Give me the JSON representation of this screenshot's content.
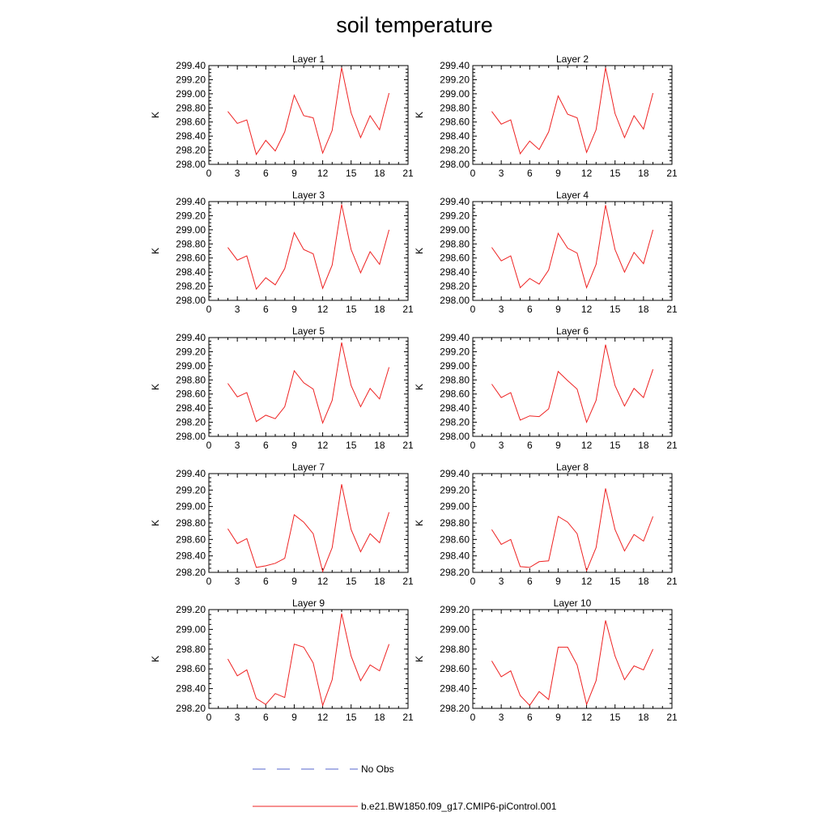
{
  "figure": {
    "title": "soil temperature"
  },
  "legend": {
    "entries": [
      {
        "label": "No Obs",
        "color": "#5566cc",
        "style": "dashed"
      },
      {
        "label": "b.e21.BW1850.f09_g17.CMIP6-piControl.001",
        "color": "#ee2222",
        "style": "solid"
      }
    ]
  },
  "chart_data": [
    {
      "type": "line",
      "title": "Layer 1",
      "ylabel": "K",
      "xlim": [
        0,
        21
      ],
      "xticks": [
        0,
        3,
        6,
        9,
        12,
        15,
        18,
        21
      ],
      "ylim": [
        298.0,
        299.4
      ],
      "yticks": [
        298.0,
        298.2,
        298.4,
        298.6,
        298.8,
        299.0,
        299.2,
        299.4
      ],
      "x": [
        2,
        3,
        4,
        5,
        6,
        7,
        8,
        9,
        10,
        11,
        12,
        13,
        14,
        15,
        16,
        17,
        18,
        19
      ],
      "series": [
        {
          "name": "b.e21.BW1850.f09_g17.CMIP6-piControl.001",
          "values": [
            298.75,
            298.58,
            298.63,
            298.14,
            298.34,
            298.19,
            298.46,
            298.98,
            298.69,
            298.66,
            298.16,
            298.48,
            299.37,
            298.73,
            298.38,
            298.69,
            298.49,
            299.01
          ]
        }
      ]
    },
    {
      "type": "line",
      "title": "Layer 2",
      "ylabel": "K",
      "xlim": [
        0,
        21
      ],
      "xticks": [
        0,
        3,
        6,
        9,
        12,
        15,
        18,
        21
      ],
      "ylim": [
        298.0,
        299.4
      ],
      "yticks": [
        298.0,
        298.2,
        298.4,
        298.6,
        298.8,
        299.0,
        299.2,
        299.4
      ],
      "x": [
        2,
        3,
        4,
        5,
        6,
        7,
        8,
        9,
        10,
        11,
        12,
        13,
        14,
        15,
        16,
        17,
        18,
        19
      ],
      "series": [
        {
          "name": "b.e21.BW1850.f09_g17.CMIP6-piControl.001",
          "values": [
            298.75,
            298.57,
            298.63,
            298.15,
            298.33,
            298.21,
            298.46,
            298.97,
            298.71,
            298.66,
            298.17,
            298.49,
            299.37,
            298.72,
            298.38,
            298.69,
            298.5,
            299.01
          ]
        }
      ]
    },
    {
      "type": "line",
      "title": "Layer 3",
      "ylabel": "K",
      "xlim": [
        0,
        21
      ],
      "xticks": [
        0,
        3,
        6,
        9,
        12,
        15,
        18,
        21
      ],
      "ylim": [
        298.0,
        299.4
      ],
      "yticks": [
        298.0,
        298.2,
        298.4,
        298.6,
        298.8,
        299.0,
        299.2,
        299.4
      ],
      "x": [
        2,
        3,
        4,
        5,
        6,
        7,
        8,
        9,
        10,
        11,
        12,
        13,
        14,
        15,
        16,
        17,
        18,
        19
      ],
      "series": [
        {
          "name": "b.e21.BW1850.f09_g17.CMIP6-piControl.001",
          "values": [
            298.75,
            298.57,
            298.63,
            298.16,
            298.32,
            298.22,
            298.45,
            298.96,
            298.72,
            298.66,
            298.17,
            298.5,
            299.36,
            298.72,
            298.39,
            298.69,
            298.51,
            299.0
          ]
        }
      ]
    },
    {
      "type": "line",
      "title": "Layer 4",
      "ylabel": "K",
      "xlim": [
        0,
        21
      ],
      "xticks": [
        0,
        3,
        6,
        9,
        12,
        15,
        18,
        21
      ],
      "ylim": [
        298.0,
        299.4
      ],
      "yticks": [
        298.0,
        298.2,
        298.4,
        298.6,
        298.8,
        299.0,
        299.2,
        299.4
      ],
      "x": [
        2,
        3,
        4,
        5,
        6,
        7,
        8,
        9,
        10,
        11,
        12,
        13,
        14,
        15,
        16,
        17,
        18,
        19
      ],
      "series": [
        {
          "name": "b.e21.BW1850.f09_g17.CMIP6-piControl.001",
          "values": [
            298.75,
            298.56,
            298.63,
            298.18,
            298.31,
            298.23,
            298.43,
            298.95,
            298.74,
            298.67,
            298.18,
            298.51,
            299.35,
            298.72,
            298.4,
            298.68,
            298.52,
            299.0
          ]
        }
      ]
    },
    {
      "type": "line",
      "title": "Layer 5",
      "ylabel": "K",
      "xlim": [
        0,
        21
      ],
      "xticks": [
        0,
        3,
        6,
        9,
        12,
        15,
        18,
        21
      ],
      "ylim": [
        298.0,
        299.4
      ],
      "yticks": [
        298.0,
        298.2,
        298.4,
        298.6,
        298.8,
        299.0,
        299.2,
        299.4
      ],
      "x": [
        2,
        3,
        4,
        5,
        6,
        7,
        8,
        9,
        10,
        11,
        12,
        13,
        14,
        15,
        16,
        17,
        18,
        19
      ],
      "series": [
        {
          "name": "b.e21.BW1850.f09_g17.CMIP6-piControl.001",
          "values": [
            298.75,
            298.56,
            298.62,
            298.21,
            298.3,
            298.25,
            298.42,
            298.93,
            298.76,
            298.67,
            298.19,
            298.51,
            299.33,
            298.72,
            298.42,
            298.68,
            298.53,
            298.98
          ]
        }
      ]
    },
    {
      "type": "line",
      "title": "Layer 6",
      "ylabel": "K",
      "xlim": [
        0,
        21
      ],
      "xticks": [
        0,
        3,
        6,
        9,
        12,
        15,
        18,
        21
      ],
      "ylim": [
        298.0,
        299.4
      ],
      "yticks": [
        298.0,
        298.2,
        298.4,
        298.6,
        298.8,
        299.0,
        299.2,
        299.4
      ],
      "x": [
        2,
        3,
        4,
        5,
        6,
        7,
        8,
        9,
        10,
        11,
        12,
        13,
        14,
        15,
        16,
        17,
        18,
        19
      ],
      "series": [
        {
          "name": "b.e21.BW1850.f09_g17.CMIP6-piControl.001",
          "values": [
            298.74,
            298.55,
            298.62,
            298.23,
            298.29,
            298.28,
            298.39,
            298.92,
            298.79,
            298.67,
            298.2,
            298.51,
            299.3,
            298.72,
            298.43,
            298.68,
            298.55,
            298.95
          ]
        }
      ]
    },
    {
      "type": "line",
      "title": "Layer 7",
      "ylabel": "K",
      "xlim": [
        0,
        21
      ],
      "xticks": [
        0,
        3,
        6,
        9,
        12,
        15,
        18,
        21
      ],
      "ylim": [
        298.2,
        299.4
      ],
      "yticks": [
        298.2,
        298.4,
        298.6,
        298.8,
        299.0,
        299.2,
        299.4
      ],
      "x": [
        2,
        3,
        4,
        5,
        6,
        7,
        8,
        9,
        10,
        11,
        12,
        13,
        14,
        15,
        16,
        17,
        18,
        19
      ],
      "series": [
        {
          "name": "b.e21.BW1850.f09_g17.CMIP6-piControl.001",
          "values": [
            298.73,
            298.55,
            298.61,
            298.26,
            298.28,
            298.31,
            298.37,
            298.9,
            298.81,
            298.67,
            298.21,
            298.5,
            299.27,
            298.72,
            298.45,
            298.67,
            298.56,
            298.93
          ]
        }
      ]
    },
    {
      "type": "line",
      "title": "Layer 8",
      "ylabel": "K",
      "xlim": [
        0,
        21
      ],
      "xticks": [
        0,
        3,
        6,
        9,
        12,
        15,
        18,
        21
      ],
      "ylim": [
        298.2,
        299.4
      ],
      "yticks": [
        298.2,
        298.4,
        298.6,
        298.8,
        299.0,
        299.2,
        299.4
      ],
      "x": [
        2,
        3,
        4,
        5,
        6,
        7,
        8,
        9,
        10,
        11,
        12,
        13,
        14,
        15,
        16,
        17,
        18,
        19
      ],
      "series": [
        {
          "name": "b.e21.BW1850.f09_g17.CMIP6-piControl.001",
          "values": [
            298.72,
            298.54,
            298.6,
            298.27,
            298.26,
            298.33,
            298.34,
            298.88,
            298.81,
            298.67,
            298.22,
            298.5,
            299.22,
            298.72,
            298.46,
            298.66,
            298.58,
            298.88
          ]
        }
      ]
    },
    {
      "type": "line",
      "title": "Layer 9",
      "ylabel": "K",
      "xlim": [
        0,
        21
      ],
      "xticks": [
        0,
        3,
        6,
        9,
        12,
        15,
        18,
        21
      ],
      "ylim": [
        298.2,
        299.2
      ],
      "yticks": [
        298.2,
        298.4,
        298.6,
        298.8,
        299.0,
        299.2
      ],
      "x": [
        2,
        3,
        4,
        5,
        6,
        7,
        8,
        9,
        10,
        11,
        12,
        13,
        14,
        15,
        16,
        17,
        18,
        19
      ],
      "series": [
        {
          "name": "b.e21.BW1850.f09_g17.CMIP6-piControl.001",
          "values": [
            298.7,
            298.53,
            298.59,
            298.3,
            298.24,
            298.35,
            298.31,
            298.85,
            298.82,
            298.66,
            298.23,
            298.49,
            299.16,
            298.73,
            298.48,
            298.64,
            298.58,
            298.85
          ]
        }
      ]
    },
    {
      "type": "line",
      "title": "Layer 10",
      "ylabel": "K",
      "xlim": [
        0,
        21
      ],
      "xticks": [
        0,
        3,
        6,
        9,
        12,
        15,
        18,
        21
      ],
      "ylim": [
        298.2,
        299.2
      ],
      "yticks": [
        298.2,
        298.4,
        298.6,
        298.8,
        299.0,
        299.2
      ],
      "x": [
        2,
        3,
        4,
        5,
        6,
        7,
        8,
        9,
        10,
        11,
        12,
        13,
        14,
        15,
        16,
        17,
        18,
        19
      ],
      "series": [
        {
          "name": "b.e21.BW1850.f09_g17.CMIP6-piControl.001",
          "values": [
            298.68,
            298.52,
            298.58,
            298.33,
            298.23,
            298.37,
            298.29,
            298.82,
            298.82,
            298.64,
            298.24,
            298.48,
            299.09,
            298.73,
            298.49,
            298.63,
            298.59,
            298.8
          ]
        }
      ]
    }
  ]
}
